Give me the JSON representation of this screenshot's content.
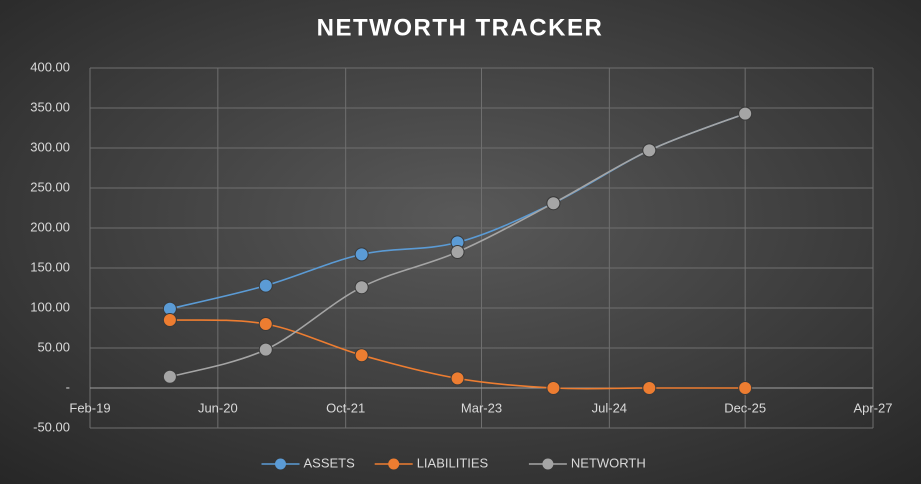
{
  "chart_data": {
    "type": "line",
    "title": "NETWORTH TRACKER",
    "x": [
      "Dec-19",
      "Dec-20",
      "Dec-21",
      "Dec-22",
      "Dec-23",
      "Dec-24",
      "Dec-25"
    ],
    "series": [
      {
        "name": "ASSETS",
        "color": "#5b9bd5",
        "values": [
          99,
          128,
          167,
          182,
          231,
          297,
          343
        ]
      },
      {
        "name": "LIABILITIES",
        "color": "#ed7d31",
        "values": [
          85,
          80,
          41,
          12,
          0,
          0,
          0
        ]
      },
      {
        "name": "NETWORTH",
        "color": "#a5a5a5",
        "values": [
          14,
          48,
          126,
          170,
          231,
          297,
          343
        ]
      }
    ],
    "xlim": [
      "Feb-19",
      "Apr-27"
    ],
    "xticks": [
      "Feb-19",
      "Jun-20",
      "Oct-21",
      "Mar-23",
      "Jul-24",
      "Dec-25",
      "Apr-27"
    ],
    "ylim": [
      -50,
      400
    ],
    "yticks": [
      {
        "value": -50,
        "label": "-50.00"
      },
      {
        "value": 0,
        "label": "-"
      },
      {
        "value": 50,
        "label": "50.00"
      },
      {
        "value": 100,
        "label": "100.00"
      },
      {
        "value": 150,
        "label": "150.00"
      },
      {
        "value": 200,
        "label": "200.00"
      },
      {
        "value": 250,
        "label": "250.00"
      },
      {
        "value": 300,
        "label": "300.00"
      },
      {
        "value": 350,
        "label": "350.00"
      },
      {
        "value": 400,
        "label": "400.00"
      }
    ],
    "grid": true,
    "legend": "bottom"
  }
}
